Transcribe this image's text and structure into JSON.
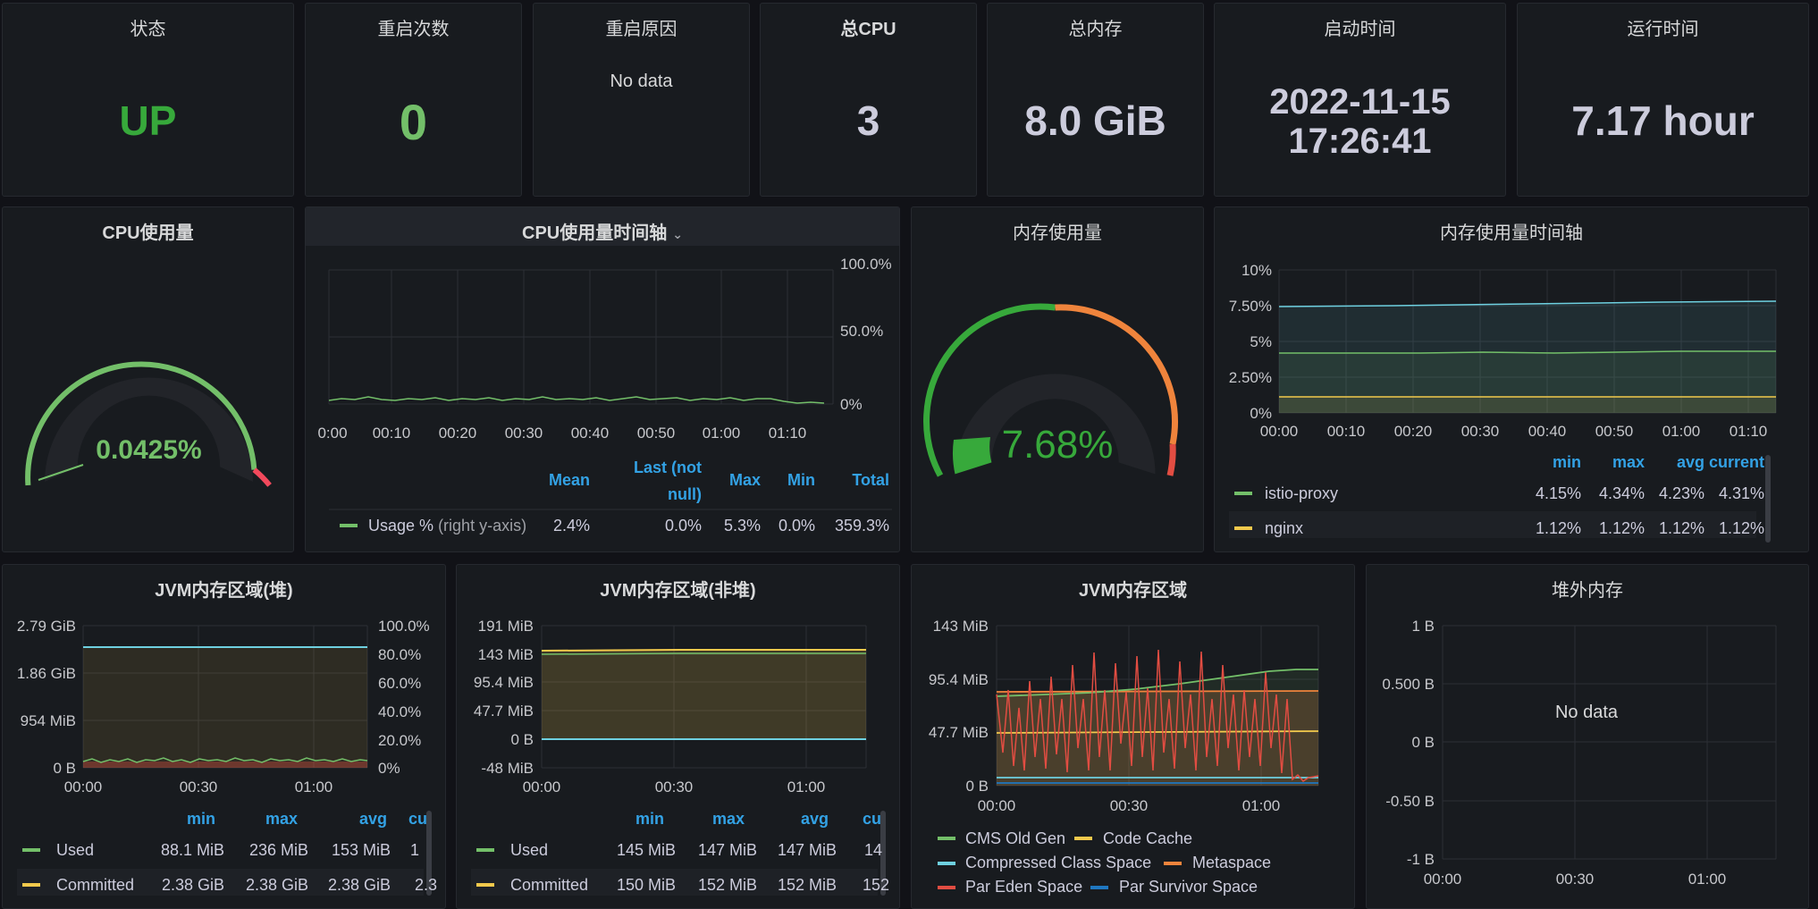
{
  "stats": {
    "status": {
      "title": "状态",
      "value": "UP",
      "color": "#37a93b"
    },
    "restarts": {
      "title": "重启次数",
      "value": "0",
      "color": "#73bf69"
    },
    "restart_reason": {
      "title": "重启原因",
      "value": "No data"
    },
    "total_cpu": {
      "title": "总CPU",
      "value": "3"
    },
    "total_mem": {
      "title": "总内存",
      "value": "8.0 GiB"
    },
    "start_time": {
      "title": "启动时间",
      "date": "2022-11-15",
      "time": "17:26:41"
    },
    "uptime": {
      "title": "运行时间",
      "value": "7.17 hour"
    }
  },
  "cpu_gauge": {
    "title": "CPU使用量",
    "value": "0.0425%",
    "fraction": 0.000425,
    "color": "#73bf69"
  },
  "mem_gauge": {
    "title": "内存使用量",
    "value": "7.68%",
    "fraction": 0.0768,
    "color": "#37a93b"
  },
  "cpu_timeline": {
    "title": "CPU使用量时间轴",
    "y_ticks": [
      "100.0%",
      "50.0%",
      "0%"
    ],
    "x_ticks": [
      "0:00",
      "00:10",
      "00:20",
      "00:30",
      "00:40",
      "00:50",
      "01:00",
      "01:10"
    ],
    "legend_headers": [
      "Mean",
      "Last (not null)",
      "Max",
      "Min",
      "Total"
    ],
    "series": [
      {
        "name": "Usage %",
        "suffix": "(right y-axis)",
        "color": "#73bf69",
        "stats": [
          "2.4%",
          "0.0%",
          "5.3%",
          "0.0%",
          "359.3%"
        ]
      }
    ]
  },
  "mem_timeline": {
    "title": "内存使用量时间轴",
    "y_ticks": [
      "10%",
      "7.50%",
      "5%",
      "2.50%",
      "0%"
    ],
    "x_ticks": [
      "00:00",
      "00:10",
      "00:20",
      "00:30",
      "00:40",
      "00:50",
      "01:00",
      "01:10"
    ],
    "legend_headers": [
      "min",
      "max",
      "avg",
      "current"
    ],
    "series": [
      {
        "name": "istio-proxy",
        "color": "#73bf69",
        "stats": [
          "4.15%",
          "4.34%",
          "4.23%",
          "4.31%"
        ]
      },
      {
        "name": "nginx",
        "color": "#f2c94c",
        "stats": [
          "1.12%",
          "1.12%",
          "1.12%",
          "1.12%"
        ]
      }
    ]
  },
  "jvm_heap": {
    "title": "JVM内存区域(堆)",
    "y_ticks_left": [
      "2.79 GiB",
      "1.86 GiB",
      "954 MiB",
      "0 B"
    ],
    "y_ticks_right": [
      "100.0%",
      "80.0%",
      "60.0%",
      "40.0%",
      "20.0%",
      "0%"
    ],
    "x_ticks": [
      "00:00",
      "00:30",
      "01:00"
    ],
    "legend_headers": [
      "min",
      "max",
      "avg",
      "cu"
    ],
    "series": [
      {
        "name": "Used",
        "color": "#73bf69",
        "stats": [
          "88.1 MiB",
          "236 MiB",
          "153 MiB",
          "1"
        ]
      },
      {
        "name": "Committed",
        "color": "#f2c94c",
        "stats": [
          "2.38 GiB",
          "2.38 GiB",
          "2.38 GiB",
          "2.3"
        ]
      }
    ]
  },
  "jvm_nonheap": {
    "title": "JVM内存区域(非堆)",
    "y_ticks": [
      "191 MiB",
      "143 MiB",
      "95.4 MiB",
      "47.7 MiB",
      "0 B",
      "-48 MiB"
    ],
    "x_ticks": [
      "00:00",
      "00:30",
      "01:00"
    ],
    "legend_headers": [
      "min",
      "max",
      "avg",
      "cu"
    ],
    "series": [
      {
        "name": "Used",
        "color": "#73bf69",
        "stats": [
          "145 MiB",
          "147 MiB",
          "147 MiB",
          "14"
        ]
      },
      {
        "name": "Committed",
        "color": "#f2c94c",
        "stats": [
          "150 MiB",
          "152 MiB",
          "152 MiB",
          "152"
        ]
      }
    ]
  },
  "jvm_regions": {
    "title": "JVM内存区域",
    "y_ticks": [
      "143 MiB",
      "95.4 MiB",
      "47.7 MiB",
      "0 B"
    ],
    "x_ticks": [
      "00:00",
      "00:30",
      "01:00"
    ],
    "legend": [
      {
        "name": "CMS Old Gen",
        "color": "#73bf69"
      },
      {
        "name": "Code Cache",
        "color": "#f2c94c"
      },
      {
        "name": "Compressed Class Space",
        "color": "#6ed0e0"
      },
      {
        "name": "Metaspace",
        "color": "#ef843c"
      },
      {
        "name": "Par Eden Space",
        "color": "#e24d42"
      },
      {
        "name": "Par Survivor Space",
        "color": "#1f78c1"
      }
    ]
  },
  "offheap": {
    "title": "堆外内存",
    "y_ticks": [
      "1 B",
      "0.500 B",
      "0 B",
      "-0.50 B",
      "-1 B"
    ],
    "x_ticks": [
      "00:00",
      "00:30",
      "01:00"
    ],
    "no_data": "No data"
  },
  "chart_data": [
    {
      "type": "line",
      "title": "CPU使用量时间轴",
      "x": [
        "0:00",
        "00:10",
        "00:20",
        "00:30",
        "00:40",
        "00:50",
        "01:00",
        "01:10"
      ],
      "series": [
        {
          "name": "Usage %",
          "values": [
            2.4,
            3,
            2.2,
            2.5,
            2.8,
            2.4,
            2.6,
            0
          ]
        }
      ],
      "ylim": [
        0,
        100
      ]
    },
    {
      "type": "line",
      "title": "内存使用量时间轴",
      "x": [
        "00:00",
        "00:10",
        "00:20",
        "00:30",
        "00:40",
        "00:50",
        "01:00",
        "01:10"
      ],
      "series": [
        {
          "name": "istio-proxy",
          "values": [
            4.15,
            4.2,
            4.22,
            4.23,
            4.25,
            4.27,
            4.3,
            4.31
          ]
        },
        {
          "name": "nginx",
          "values": [
            1.12,
            1.12,
            1.12,
            1.12,
            1.12,
            1.12,
            1.12,
            1.12
          ]
        }
      ],
      "ylim": [
        0,
        10
      ]
    }
  ]
}
